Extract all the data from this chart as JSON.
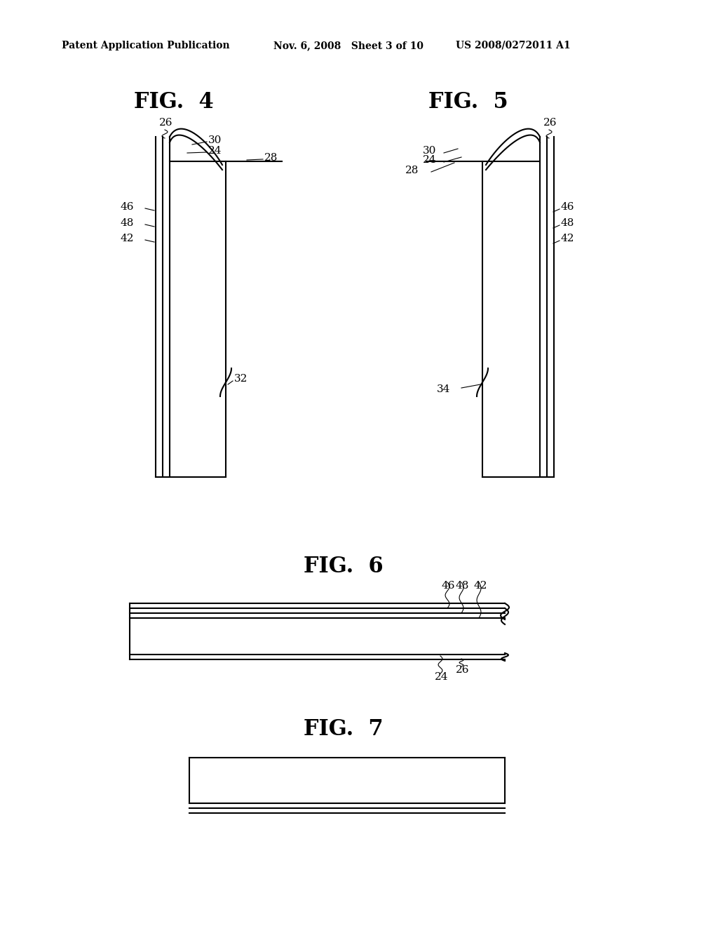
{
  "bg_color": "#ffffff",
  "line_color": "#000000",
  "header_text": "Patent Application Publication",
  "header_date": "Nov. 6, 2008   Sheet 3 of 10",
  "header_patent": "US 2008/0272011 A1",
  "fig4_title": "FIG.  4",
  "fig5_title": "FIG.  5",
  "fig6_title": "FIG.  6",
  "fig7_title": "FIG.  7"
}
